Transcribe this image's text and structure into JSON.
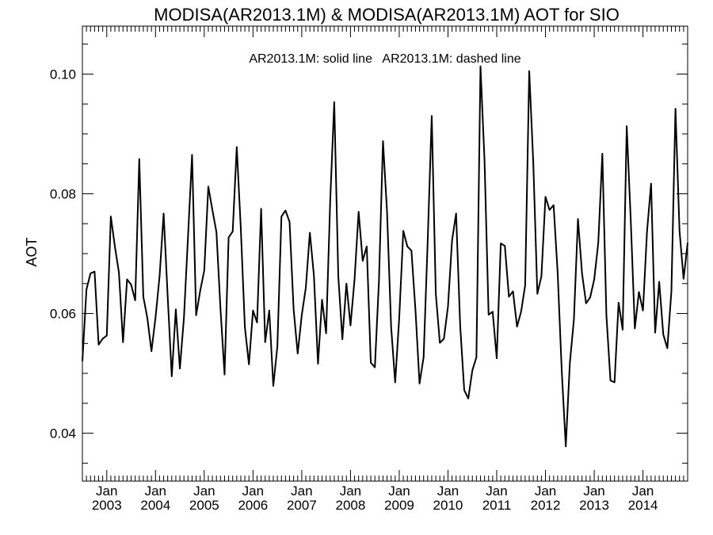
{
  "chart_data": {
    "type": "line",
    "title": "MODISA(AR2013.1M) & MODISA(AR2013.1M)  AOT for SIO",
    "legend_text": "AR2013.1M: solid line   AR2013.1M: dashed line",
    "xlabel": "",
    "ylabel": "AOT",
    "xlim": [
      "2002-07-01",
      "2014-12-01"
    ],
    "ylim": [
      0.032,
      0.108
    ],
    "y_ticks": [
      0.04,
      0.06,
      0.08,
      0.1
    ],
    "y_tick_labels": [
      "0.04",
      "0.06",
      "0.08",
      "0.10"
    ],
    "x_ticks": [
      {
        "date": "2003-01-01",
        "month": "Jan",
        "year": "2003"
      },
      {
        "date": "2004-01-01",
        "month": "Jan",
        "year": "2004"
      },
      {
        "date": "2005-01-01",
        "month": "Jan",
        "year": "2005"
      },
      {
        "date": "2006-01-01",
        "month": "Jan",
        "year": "2006"
      },
      {
        "date": "2007-01-01",
        "month": "Jan",
        "year": "2007"
      },
      {
        "date": "2008-01-01",
        "month": "Jan",
        "year": "2008"
      },
      {
        "date": "2009-01-01",
        "month": "Jan",
        "year": "2009"
      },
      {
        "date": "2010-01-01",
        "month": "Jan",
        "year": "2010"
      },
      {
        "date": "2011-01-01",
        "month": "Jan",
        "year": "2011"
      },
      {
        "date": "2012-01-01",
        "month": "Jan",
        "year": "2012"
      },
      {
        "date": "2013-01-01",
        "month": "Jan",
        "year": "2013"
      },
      {
        "date": "2014-01-01",
        "month": "Jan",
        "year": "2014"
      }
    ],
    "grid": false,
    "series": [
      {
        "style": "solid",
        "color": "#000000",
        "x": [
          "2002-07",
          "2002-08",
          "2002-09",
          "2002-10",
          "2002-11",
          "2002-12",
          "2003-01",
          "2003-02",
          "2003-03",
          "2003-04",
          "2003-05",
          "2003-06",
          "2003-07",
          "2003-08",
          "2003-09",
          "2003-10",
          "2003-11",
          "2003-12",
          "2004-01",
          "2004-02",
          "2004-03",
          "2004-04",
          "2004-05",
          "2004-06",
          "2004-07",
          "2004-08",
          "2004-09",
          "2004-10",
          "2004-11",
          "2004-12",
          "2005-01",
          "2005-02",
          "2005-03",
          "2005-04",
          "2005-05",
          "2005-06",
          "2005-07",
          "2005-08",
          "2005-09",
          "2005-10",
          "2005-11",
          "2005-12",
          "2006-01",
          "2006-02",
          "2006-03",
          "2006-04",
          "2006-05",
          "2006-06",
          "2006-07",
          "2006-08",
          "2006-09",
          "2006-10",
          "2006-11",
          "2006-12",
          "2007-01",
          "2007-02",
          "2007-03",
          "2007-04",
          "2007-05",
          "2007-06",
          "2007-07",
          "2007-08",
          "2007-09",
          "2007-10",
          "2007-11",
          "2007-12",
          "2008-01",
          "2008-02",
          "2008-03",
          "2008-04",
          "2008-05",
          "2008-06",
          "2008-07",
          "2008-08",
          "2008-09",
          "2008-10",
          "2008-11",
          "2008-12",
          "2009-01",
          "2009-02",
          "2009-03",
          "2009-04",
          "2009-05",
          "2009-06",
          "2009-07",
          "2009-08",
          "2009-09",
          "2009-10",
          "2009-11",
          "2009-12",
          "2010-01",
          "2010-02",
          "2010-03",
          "2010-04",
          "2010-05",
          "2010-06",
          "2010-07",
          "2010-08",
          "2010-09",
          "2010-10",
          "2010-11",
          "2010-12",
          "2011-01",
          "2011-02",
          "2011-03",
          "2011-04",
          "2011-05",
          "2011-06",
          "2011-07",
          "2011-08",
          "2011-09",
          "2011-10",
          "2011-11",
          "2011-12",
          "2012-01",
          "2012-02",
          "2012-03",
          "2012-04",
          "2012-05",
          "2012-06",
          "2012-07",
          "2012-08",
          "2012-09",
          "2012-10",
          "2012-11",
          "2012-12",
          "2013-01",
          "2013-02",
          "2013-03",
          "2013-04",
          "2013-05",
          "2013-06",
          "2013-07",
          "2013-08",
          "2013-09",
          "2013-10",
          "2013-11",
          "2013-12",
          "2014-01",
          "2014-02",
          "2014-03",
          "2014-04",
          "2014-05",
          "2014-06",
          "2014-07",
          "2014-08",
          "2014-09",
          "2014-10",
          "2014-11",
          "2014-12"
        ],
        "y": [
          0.052,
          0.064,
          0.0667,
          0.067,
          0.0548,
          0.0558,
          0.0563,
          0.0762,
          0.0712,
          0.0668,
          0.0552,
          0.0657,
          0.0648,
          0.0622,
          0.0858,
          0.0628,
          0.0592,
          0.0537,
          0.0593,
          0.0662,
          0.0767,
          0.0628,
          0.0495,
          0.0607,
          0.0508,
          0.0593,
          0.0728,
          0.0865,
          0.0597,
          0.0638,
          0.0672,
          0.0812,
          0.0773,
          0.0736,
          0.0607,
          0.0498,
          0.0727,
          0.0737,
          0.0878,
          0.0742,
          0.0577,
          0.0515,
          0.0605,
          0.0585,
          0.0775,
          0.0552,
          0.0605,
          0.0479,
          0.0545,
          0.0762,
          0.0772,
          0.0753,
          0.0607,
          0.0533,
          0.0597,
          0.0643,
          0.0735,
          0.0663,
          0.0516,
          0.0623,
          0.0567,
          0.0787,
          0.0953,
          0.0662,
          0.0557,
          0.065,
          0.058,
          0.0657,
          0.077,
          0.0688,
          0.0712,
          0.0518,
          0.051,
          0.0653,
          0.0888,
          0.077,
          0.0578,
          0.0485,
          0.0593,
          0.0738,
          0.0712,
          0.0705,
          0.0605,
          0.0483,
          0.0527,
          0.072,
          0.093,
          0.0633,
          0.0551,
          0.0558,
          0.0612,
          0.0722,
          0.0767,
          0.058,
          0.0472,
          0.0458,
          0.0505,
          0.0527,
          0.1013,
          0.0855,
          0.0598,
          0.0603,
          0.0525,
          0.0717,
          0.0713,
          0.0628,
          0.0637,
          0.0578,
          0.0603,
          0.0647,
          0.1005,
          0.0852,
          0.0633,
          0.0662,
          0.0795,
          0.0773,
          0.0781,
          0.0668,
          0.0505,
          0.0378,
          0.0517,
          0.059,
          0.0758,
          0.0667,
          0.0617,
          0.0627,
          0.0657,
          0.0718,
          0.0867,
          0.0597,
          0.0488,
          0.0485,
          0.0618,
          0.0573,
          0.0913,
          0.0755,
          0.0575,
          0.0636,
          0.0605,
          0.0737,
          0.0817,
          0.0568,
          0.0653,
          0.0565,
          0.0542,
          0.0637,
          0.0942,
          0.0738,
          0.0658,
          0.0718
        ]
      }
    ]
  }
}
